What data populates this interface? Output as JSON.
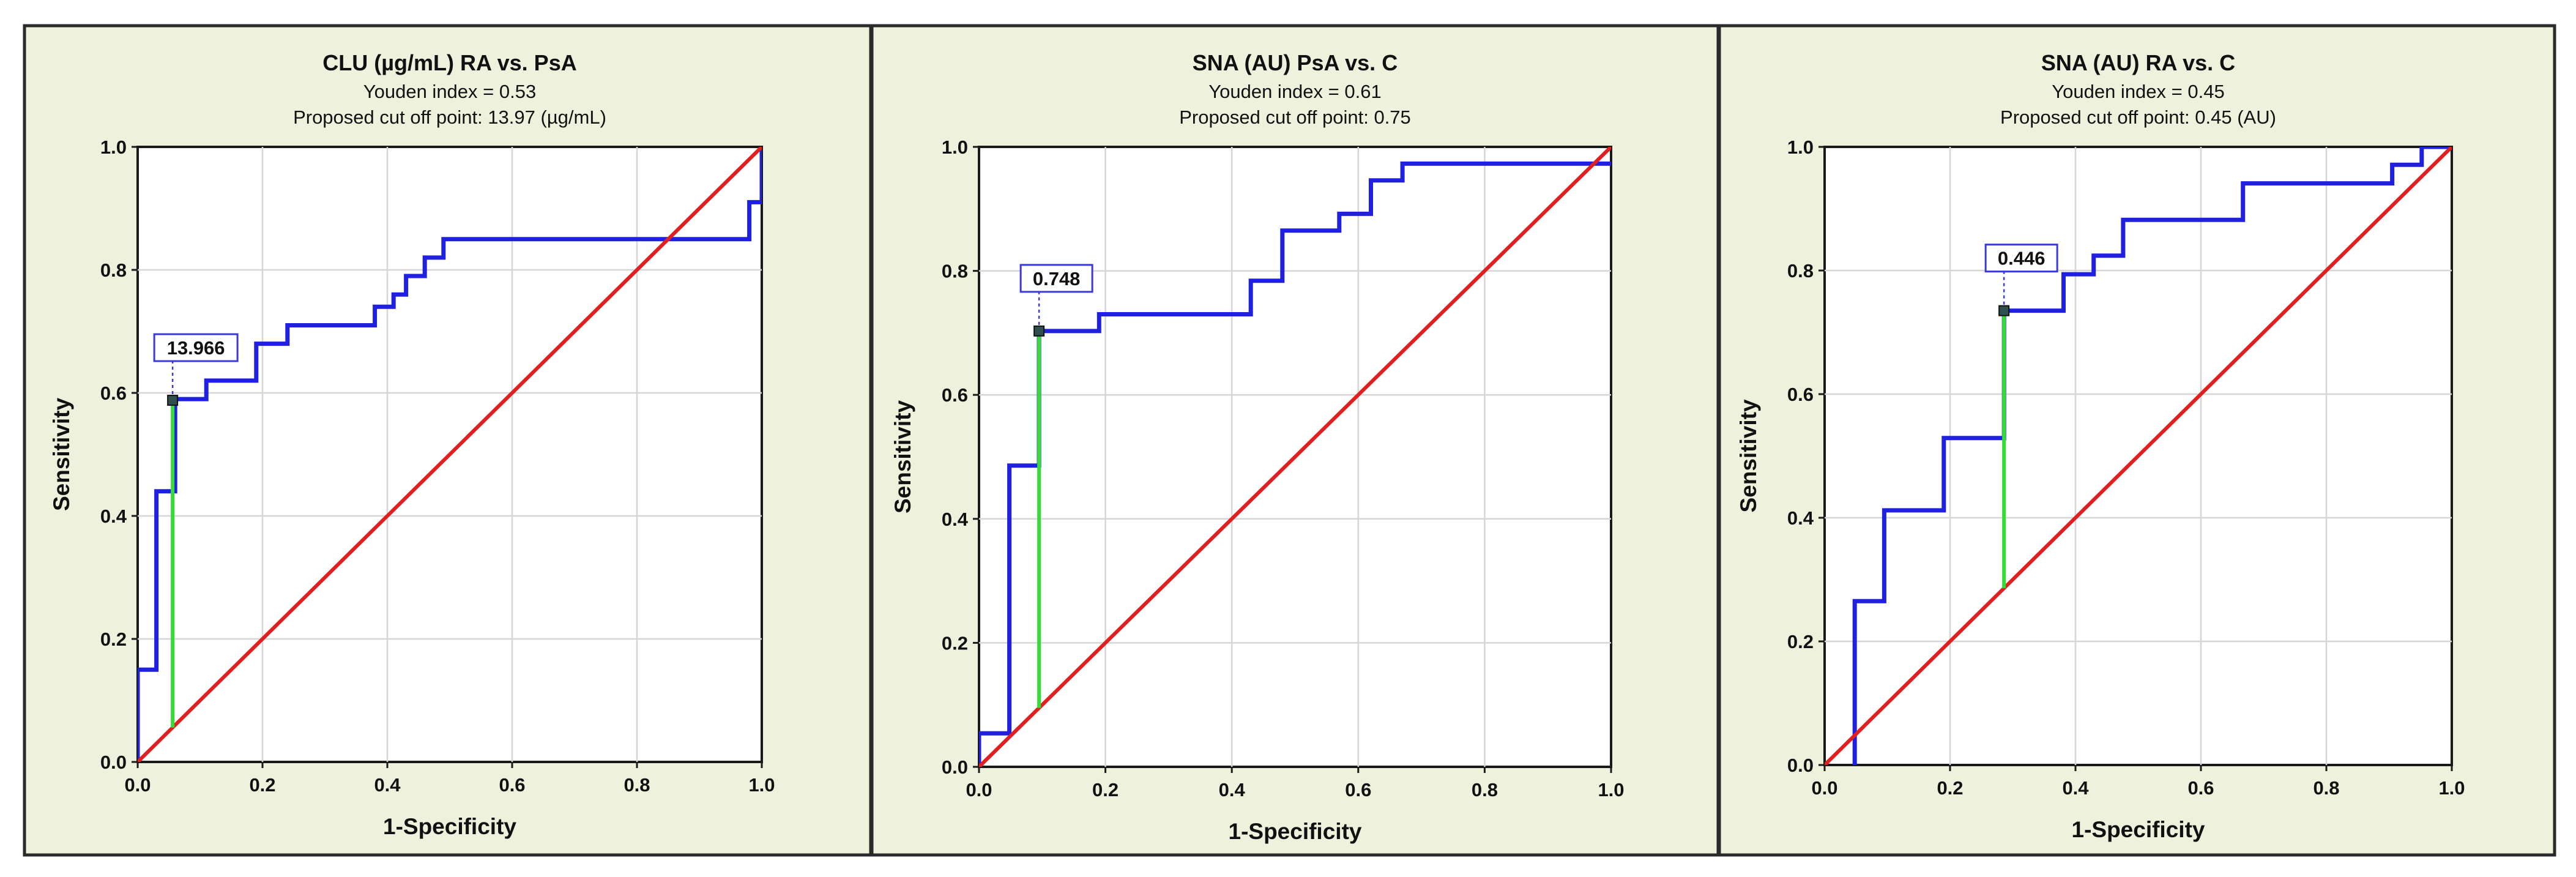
{
  "chart_data": [
    {
      "type": "line",
      "title": "CLU (µg/mL) RA vs. PsA",
      "subtitle_1": "Youden index = 0.53",
      "subtitle_2": "Proposed cut off point: 13.97 (µg/mL)",
      "xlabel": "1-Specificity",
      "ylabel": "Sensitivity",
      "xlim": [
        0,
        1
      ],
      "ylim": [
        0,
        1
      ],
      "x_ticks": [
        "0.0",
        "0.2",
        "0.4",
        "0.6",
        "0.8",
        "1.0"
      ],
      "y_ticks": [
        "0.0",
        "0.2",
        "0.4",
        "0.6",
        "0.8",
        "1.0"
      ],
      "grid": true,
      "series": [
        {
          "name": "ROC curve",
          "color": "#2020e0",
          "x": [
            0,
            0,
            0.03,
            0.03,
            0.06,
            0.06,
            0.11,
            0.11,
            0.19,
            0.19,
            0.24,
            0.24,
            0.38,
            0.38,
            0.41,
            0.41,
            0.43,
            0.43,
            0.46,
            0.46,
            0.49,
            0.49,
            0.84,
            0.98,
            0.98,
            1.0,
            1.0
          ],
          "y": [
            0,
            0.15,
            0.15,
            0.44,
            0.44,
            0.59,
            0.59,
            0.62,
            0.62,
            0.68,
            0.68,
            0.71,
            0.71,
            0.74,
            0.74,
            0.76,
            0.76,
            0.79,
            0.79,
            0.82,
            0.82,
            0.85,
            0.85,
            0.85,
            0.91,
            0.91,
            1.0
          ]
        },
        {
          "name": "Reference line",
          "color": "#e02020",
          "x": [
            0,
            1
          ],
          "y": [
            0,
            1
          ]
        }
      ],
      "youden_line": {
        "color": "#33dd33",
        "x": 0.056,
        "y_from": 0.056,
        "y_to": 0.588
      },
      "cutoff_marker": {
        "x": 0.056,
        "y": 0.588,
        "label": "13.966"
      }
    },
    {
      "type": "line",
      "title": "SNA (AU) PsA vs. C",
      "subtitle_1": "Youden index = 0.61",
      "subtitle_2": "Proposed cut off point: 0.75",
      "xlabel": "1-Specificity",
      "ylabel": "Sensitivity",
      "xlim": [
        0,
        1
      ],
      "ylim": [
        0,
        1
      ],
      "x_ticks": [
        "0.0",
        "0.2",
        "0.4",
        "0.6",
        "0.8",
        "1.0"
      ],
      "y_ticks": [
        "0.0",
        "0.2",
        "0.4",
        "0.6",
        "0.8",
        "1.0"
      ],
      "grid": true,
      "series": [
        {
          "name": "ROC curve",
          "color": "#2020e0",
          "x": [
            0,
            0,
            0.048,
            0.048,
            0.095,
            0.095,
            0.19,
            0.19,
            0.43,
            0.43,
            0.48,
            0.48,
            0.57,
            0.57,
            0.62,
            0.62,
            0.67,
            0.67,
            1.0
          ],
          "y": [
            0,
            0.054,
            0.054,
            0.486,
            0.486,
            0.703,
            0.703,
            0.73,
            0.73,
            0.784,
            0.784,
            0.865,
            0.865,
            0.892,
            0.892,
            0.946,
            0.946,
            0.973,
            0.973
          ]
        },
        {
          "name": "Reference line",
          "color": "#e02020",
          "x": [
            0,
            1
          ],
          "y": [
            0,
            1
          ]
        }
      ],
      "youden_line": {
        "color": "#33dd33",
        "x": 0.095,
        "y_from": 0.095,
        "y_to": 0.703
      },
      "cutoff_marker": {
        "x": 0.095,
        "y": 0.703,
        "label": "0.748"
      }
    },
    {
      "type": "line",
      "title": "SNA (AU) RA vs. C",
      "subtitle_1": "Youden index = 0.45",
      "subtitle_2": "Proposed cut off point: 0.45 (AU)",
      "xlabel": "1-Specificity",
      "ylabel": "Sensitivity",
      "xlim": [
        0,
        1
      ],
      "ylim": [
        0,
        1
      ],
      "x_ticks": [
        "0.0",
        "0.2",
        "0.4",
        "0.6",
        "0.8",
        "1.0"
      ],
      "y_ticks": [
        "0.0",
        "0.2",
        "0.4",
        "0.6",
        "0.8",
        "1.0"
      ],
      "grid": true,
      "series": [
        {
          "name": "ROC curve",
          "color": "#2020e0",
          "x": [
            0.048,
            0.048,
            0.048,
            0.095,
            0.095,
            0.19,
            0.19,
            0.286,
            0.286,
            0.381,
            0.381,
            0.429,
            0.429,
            0.476,
            0.476,
            0.667,
            0.667,
            0.905,
            0.905,
            0.952,
            0.952,
            1.0
          ],
          "y": [
            0,
            0,
            0.265,
            0.265,
            0.412,
            0.412,
            0.529,
            0.529,
            0.735,
            0.735,
            0.794,
            0.794,
            0.824,
            0.824,
            0.882,
            0.882,
            0.941,
            0.941,
            0.971,
            0.971,
            1.0,
            1.0
          ]
        },
        {
          "name": "Reference line",
          "color": "#e02020",
          "x": [
            0,
            1
          ],
          "y": [
            0,
            1
          ]
        }
      ],
      "youden_line": {
        "color": "#33dd33",
        "x": 0.286,
        "y_from": 0.286,
        "y_to": 0.735
      },
      "cutoff_marker": {
        "x": 0.286,
        "y": 0.735,
        "label": "0.446"
      }
    }
  ]
}
